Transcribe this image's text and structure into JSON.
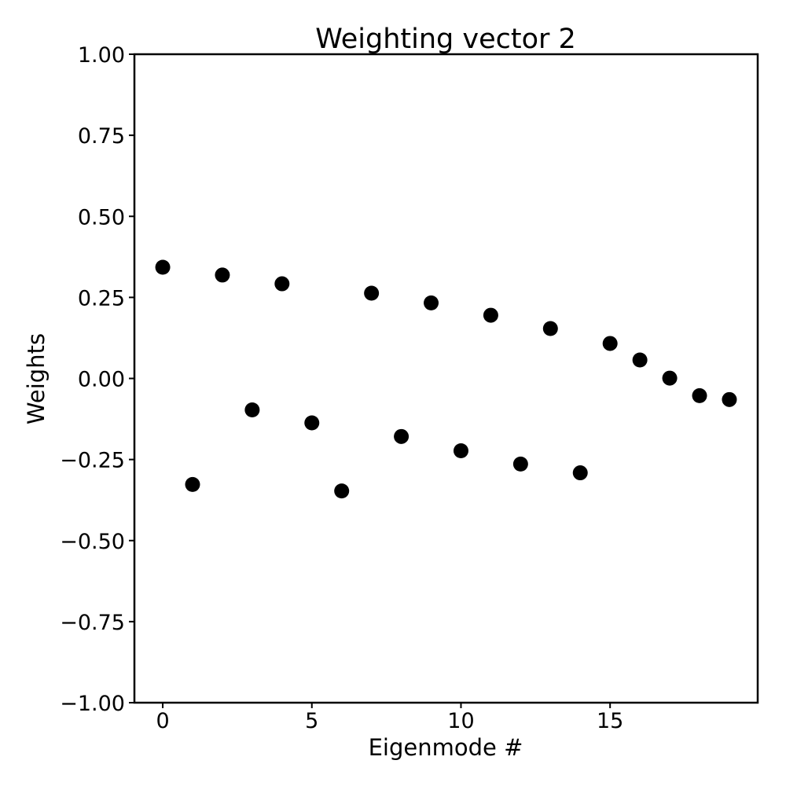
{
  "chart_data": {
    "type": "scatter",
    "title": "Weighting vector 2",
    "xlabel": "Eigenmode #",
    "ylabel": "Weights",
    "xlim": [
      -0.95,
      19.95
    ],
    "ylim": [
      -1.0,
      1.0
    ],
    "grid": false,
    "marker_color": "#000000",
    "x_ticks": [
      0,
      5,
      10,
      15
    ],
    "x_tick_labels": [
      "0",
      "5",
      "10",
      "15"
    ],
    "y_ticks": [
      1.0,
      0.75,
      0.5,
      0.25,
      0.0,
      -0.25,
      -0.5,
      -0.75,
      -1.0
    ],
    "y_tick_labels": [
      "1.00",
      "0.75",
      "0.50",
      "0.25",
      "0.00",
      "−0.25",
      "−0.50",
      "−0.75",
      "−1.00"
    ],
    "series": [
      {
        "name": "Weighting vector 2",
        "x": [
          0,
          1,
          2,
          3,
          4,
          5,
          6,
          7,
          8,
          9,
          10,
          11,
          12,
          13,
          14,
          15,
          16,
          17,
          18,
          19
        ],
        "y": [
          0.343,
          -0.327,
          0.319,
          -0.097,
          0.292,
          -0.137,
          -0.347,
          0.263,
          -0.179,
          0.233,
          -0.223,
          0.195,
          -0.264,
          0.154,
          -0.291,
          0.108,
          0.057,
          0.001,
          -0.053,
          -0.065
        ]
      }
    ]
  }
}
